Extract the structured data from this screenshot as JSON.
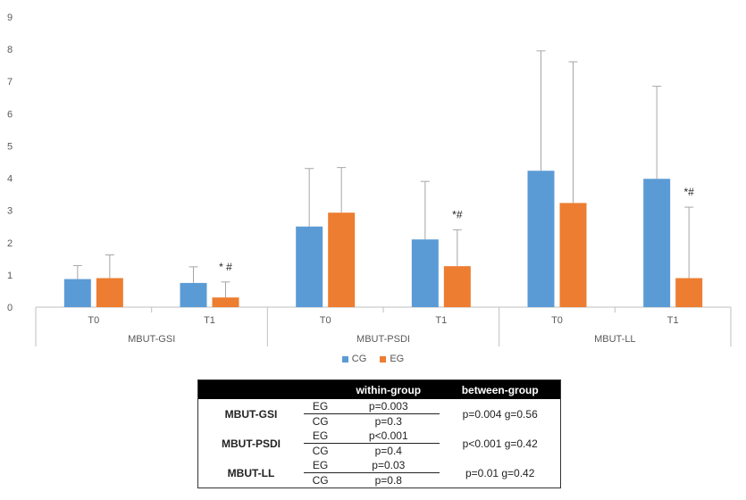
{
  "chart_data": {
    "type": "bar",
    "y_ticks": [
      "0",
      "1",
      "2",
      "3",
      "4",
      "5",
      "6",
      "7",
      "8",
      "9"
    ],
    "ylim": [
      0,
      9
    ],
    "grid": false,
    "legend_placement": "bottom",
    "colors": {
      "CG": "#5b9bd5",
      "EG": "#ed7d31",
      "error_bar": "#a6a6a6"
    },
    "groups": [
      {
        "label": "MBUT-GSI",
        "timepoints": [
          {
            "label": "T0",
            "CG": {
              "mean": 0.87,
              "err": 0.42
            },
            "EG": {
              "mean": 0.9,
              "err": 0.72
            },
            "annotation": ""
          },
          {
            "label": "T1",
            "CG": {
              "mean": 0.75,
              "err": 0.5
            },
            "EG": {
              "mean": 0.3,
              "err": 0.48
            },
            "annotation": "* #"
          }
        ]
      },
      {
        "label": "MBUT-PSDI",
        "timepoints": [
          {
            "label": "T0",
            "CG": {
              "mean": 2.5,
              "err": 1.8
            },
            "EG": {
              "mean": 2.93,
              "err": 1.4
            },
            "annotation": ""
          },
          {
            "label": "T1",
            "CG": {
              "mean": 2.1,
              "err": 1.8
            },
            "EG": {
              "mean": 1.27,
              "err": 1.13
            },
            "annotation": "*#"
          }
        ]
      },
      {
        "label": "MBUT-LL",
        "timepoints": [
          {
            "label": "T0",
            "CG": {
              "mean": 4.23,
              "err": 3.72
            },
            "EG": {
              "mean": 3.23,
              "err": 4.38
            },
            "annotation": ""
          },
          {
            "label": "T1",
            "CG": {
              "mean": 3.98,
              "err": 2.87
            },
            "EG": {
              "mean": 0.9,
              "err": 2.2
            },
            "annotation": "*#"
          }
        ]
      }
    ],
    "series": [
      {
        "name": "CG"
      },
      {
        "name": "EG"
      }
    ]
  },
  "table": {
    "headers": [
      "",
      "",
      "within-group",
      "between-group"
    ],
    "rows": [
      {
        "group": "MBUT-GSI",
        "between": "p=0.004 g=0.56",
        "sub": [
          {
            "name": "EG",
            "within": "p=0.003"
          },
          {
            "name": "CG",
            "within": "p=0.3"
          }
        ]
      },
      {
        "group": "MBUT-PSDI",
        "between": "p<0.001 g=0.42",
        "sub": [
          {
            "name": "EG",
            "within": "p<0.001"
          },
          {
            "name": "CG",
            "within": "p=0.4"
          }
        ]
      },
      {
        "group": "MBUT-LL",
        "between": "p=0.01 g=0.42",
        "sub": [
          {
            "name": "EG",
            "within": "p=0.03"
          },
          {
            "name": "CG",
            "within": "p=0.8"
          }
        ]
      }
    ]
  }
}
